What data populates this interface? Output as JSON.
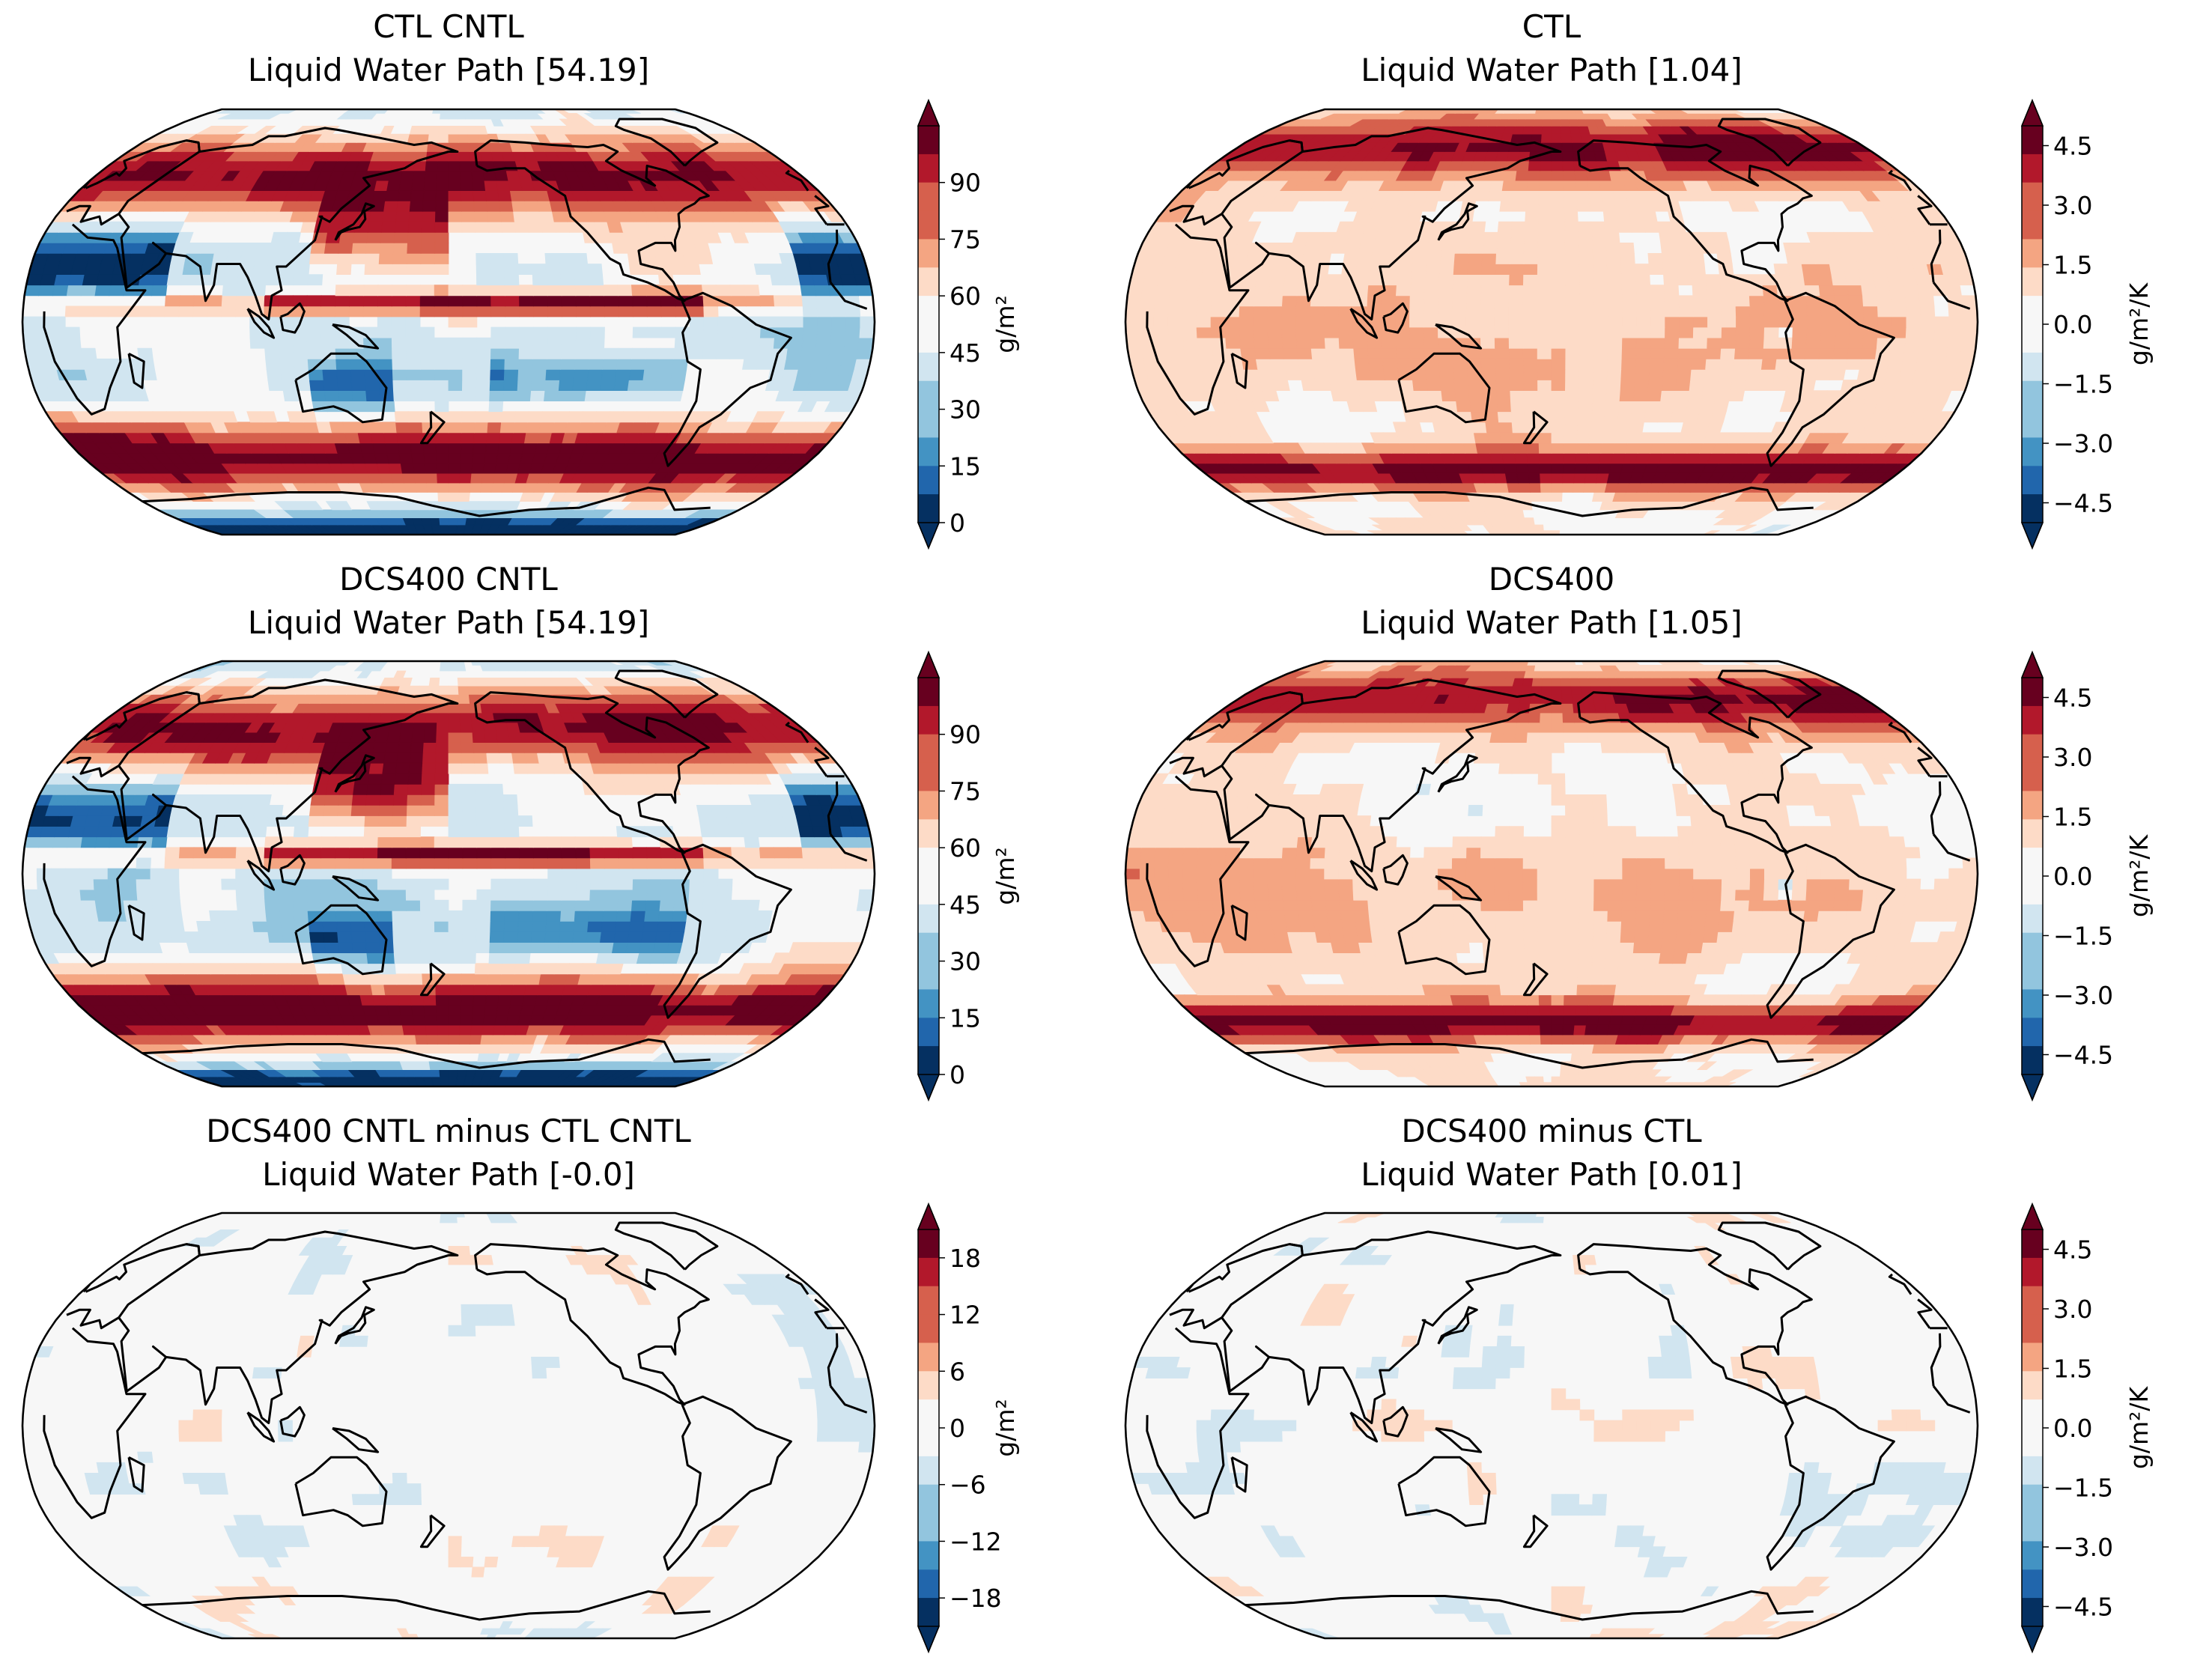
{
  "colors": {
    "rdbu": [
      "#053061",
      "#2166ac",
      "#4393c3",
      "#92c5de",
      "#d1e5f0",
      "#f7f7f7",
      "#fddbc7",
      "#f4a582",
      "#d6604d",
      "#b2182b",
      "#67001f"
    ],
    "outline": "#000000"
  },
  "chart_data": [
    {
      "type": "map",
      "title_line1": "CTL CNTL",
      "title_line2": "Liquid Water Path [54.19]",
      "field": "mean",
      "colorbar": {
        "label": "g/m²",
        "vmin": 0,
        "vmax": 105,
        "ticks": [
          0,
          15,
          30,
          45,
          60,
          75,
          90
        ],
        "tick_labels": [
          "0",
          "15",
          "30",
          "45",
          "60",
          "75",
          "90"
        ]
      }
    },
    {
      "type": "map",
      "title_line1": "CTL",
      "title_line2": "Liquid Water Path [1.04]",
      "field": "response",
      "colorbar": {
        "label": "g/m²/K",
        "vmin": -5,
        "vmax": 5,
        "ticks": [
          -4.5,
          -3.0,
          -1.5,
          0.0,
          1.5,
          3.0,
          4.5
        ],
        "tick_labels": [
          "−4.5",
          "−3.0",
          "−1.5",
          "0.0",
          "1.5",
          "3.0",
          "4.5"
        ]
      }
    },
    {
      "type": "map",
      "title_line1": "DCS400 CNTL",
      "title_line2": "Liquid Water Path [54.19]",
      "field": "mean",
      "colorbar": {
        "label": "g/m²",
        "vmin": 0,
        "vmax": 105,
        "ticks": [
          0,
          15,
          30,
          45,
          60,
          75,
          90
        ],
        "tick_labels": [
          "0",
          "15",
          "30",
          "45",
          "60",
          "75",
          "90"
        ]
      }
    },
    {
      "type": "map",
      "title_line1": "DCS400",
      "title_line2": "Liquid Water Path [1.05]",
      "field": "response",
      "colorbar": {
        "label": "g/m²/K",
        "vmin": -5,
        "vmax": 5,
        "ticks": [
          -4.5,
          -3.0,
          -1.5,
          0.0,
          1.5,
          3.0,
          4.5
        ],
        "tick_labels": [
          "−4.5",
          "−3.0",
          "−1.5",
          "0.0",
          "1.5",
          "3.0",
          "4.5"
        ]
      }
    },
    {
      "type": "map",
      "title_line1": "DCS400 CNTL minus CTL CNTL",
      "title_line2": "Liquid Water Path [-0.0]",
      "field": "difference",
      "colorbar": {
        "label": "g/m²",
        "vmin": -21,
        "vmax": 21,
        "ticks": [
          -18,
          -12,
          -6,
          0,
          6,
          12,
          18
        ],
        "tick_labels": [
          "−18",
          "−12",
          "−6",
          "0",
          "6",
          "12",
          "18"
        ]
      }
    },
    {
      "type": "map",
      "title_line1": "DCS400 minus CTL",
      "title_line2": "Liquid Water Path [0.01]",
      "field": "difference",
      "colorbar": {
        "label": "g/m²/K",
        "vmin": -5,
        "vmax": 5,
        "ticks": [
          -4.5,
          -3.0,
          -1.5,
          0.0,
          1.5,
          3.0,
          4.5
        ],
        "tick_labels": [
          "−4.5",
          "−3.0",
          "−1.5",
          "0.0",
          "1.5",
          "3.0",
          "4.5"
        ]
      }
    }
  ]
}
